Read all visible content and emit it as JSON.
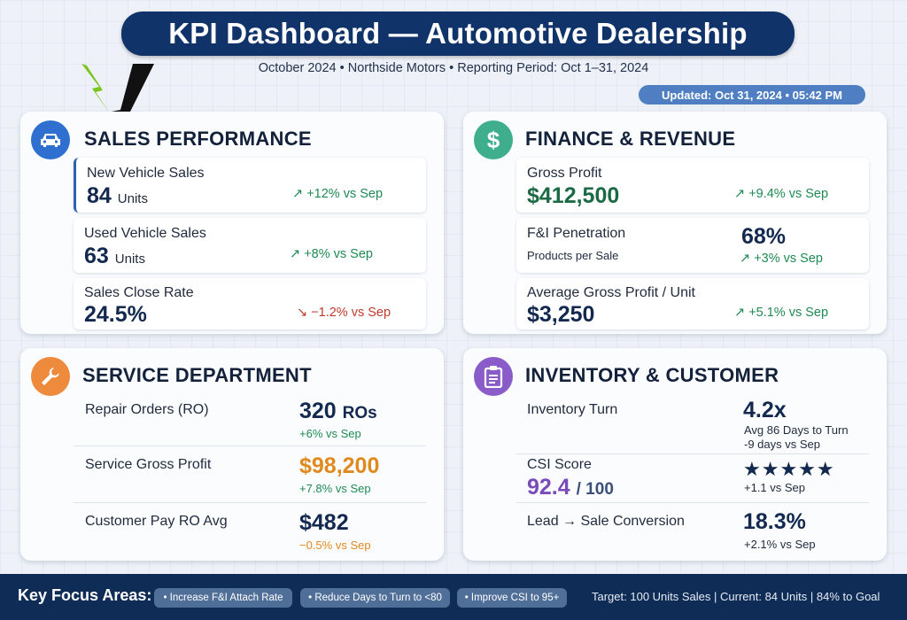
{
  "header": {
    "title": "KPI Dashboard — Automotive Dealership",
    "subtitle": "October 2024 • Northside Motors • Reporting Period: Oct 1–31, 2024",
    "updated": "Updated: Oct 31, 2024 • 05:42 PM"
  },
  "sales": {
    "title": "SALES PERFORMANCE",
    "icon": "car-icon",
    "new_label": "New Vehicle Sales",
    "new_value": "84",
    "new_unit": "Units",
    "new_trend": "+12% vs Sep",
    "used_label": "Used Vehicle Sales",
    "used_value": "63",
    "used_unit": "Units",
    "used_trend": "+8% vs Sep",
    "close_label": "Sales Close Rate",
    "close_value": "24.5%",
    "close_trend": "−1.2% vs Sep"
  },
  "finance": {
    "title": "FINANCE & REVENUE",
    "icon": "dollar-icon",
    "gp_label": "Gross Profit",
    "gp_value": "$412,500",
    "gp_trend": "+9.4% vs Sep",
    "fi_label": "F&I Penetration",
    "fi_sub": "Products per Sale",
    "fi_value": "68%",
    "fi_trend": "+3% vs Sep",
    "agp_label": "Average Gross Profit / Unit",
    "agp_value": "$3,250",
    "agp_trend": "+5.1% vs Sep"
  },
  "service": {
    "title": "SERVICE DEPARTMENT",
    "icon": "wrench-icon",
    "ro_label": "Repair Orders (RO)",
    "ro_value": "320",
    "ro_unit": "ROs",
    "ro_trend": "+6% vs Sep",
    "sgp_label": "Service Gross Profit",
    "sgp_value": "$98,200",
    "sgp_trend": "+7.8% vs Sep",
    "cp_label": "Customer Pay RO Avg",
    "cp_value": "$482",
    "cp_trend": "−0.5% vs Sep"
  },
  "inventory": {
    "title": "INVENTORY & CUSTOMER",
    "icon": "clipboard-icon",
    "turn_label": "Inventory Turn",
    "turn_value": "4.2x",
    "turn_days": "Avg 86 Days to Turn",
    "turn_trend": "-9 days vs Sep",
    "csi_label": "CSI Score",
    "csi_value": "92.4",
    "csi_max": "/ 100",
    "csi_stars": 4.5,
    "csi_trend": "+1.1 vs Sep",
    "lead_label": "Lead → Sale Conversion",
    "lead_value": "18.3%",
    "lead_trend": "+2.1% vs Sep"
  },
  "footer": {
    "label": "Key Focus Areas:",
    "chips": [
      "• Increase F&I Attach Rate",
      "• Reduce Days to Turn to <80",
      "• Improve CSI to 95+"
    ],
    "target": "Target: 100 Units Sales | Current: 84 Units | 84% to Goal"
  },
  "colors": {
    "navy": "#10336a",
    "up": "#1f8a52",
    "down": "#c0392b",
    "service_accent": "#e0891f",
    "csi_accent": "#7b4bb8",
    "sales_icon": "#2e6fcf",
    "finance_icon": "#3fae8c",
    "service_icon": "#ee8a3c",
    "inventory_icon": "#8a5cc9"
  }
}
